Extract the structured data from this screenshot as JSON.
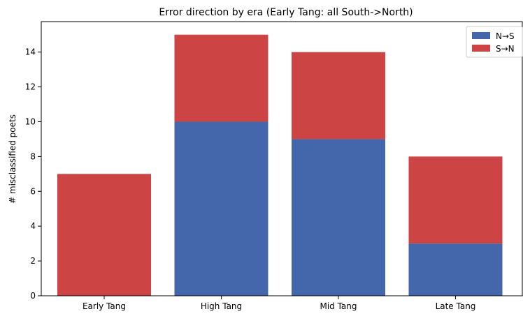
{
  "chart_data": {
    "type": "bar",
    "stacked": true,
    "title": "Error direction by era (Early Tang: all South->North)",
    "xlabel": "",
    "ylabel": "# misclassified poets",
    "categories": [
      "Early Tang",
      "High Tang",
      "Mid Tang",
      "Late Tang"
    ],
    "series": [
      {
        "name": "N→S",
        "values": [
          0,
          10,
          9,
          3
        ],
        "color": "#4466aa"
      },
      {
        "name": "S→N",
        "values": [
          7,
          5,
          5,
          5
        ],
        "color": "#cc4444"
      }
    ],
    "ylim": [
      0,
      15.75
    ],
    "yticks": [
      0,
      2,
      4,
      6,
      8,
      10,
      12,
      14
    ],
    "grid": false,
    "legend_position": "top-right"
  }
}
